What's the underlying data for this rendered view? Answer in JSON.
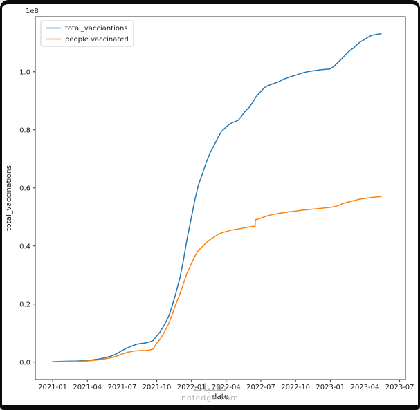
{
  "figure": {
    "background": "#ffffff",
    "frame_color": "#0b0b0b"
  },
  "watermark": {
    "line1": "تقنيات",
    "line2": "nofedge.com"
  },
  "chart_data": {
    "type": "line",
    "title": "",
    "xlabel": "date",
    "ylabel": "total_vaccinations",
    "y_offset_label": "1e8",
    "grid": false,
    "xlim": [
      -1.5,
      30.5
    ],
    "ylim": [
      -0.06,
      1.19
    ],
    "x_ticks": {
      "positions": [
        0,
        3,
        6,
        9,
        12,
        15,
        18,
        21,
        24,
        27,
        30
      ],
      "labels": [
        "2021-01",
        "2021-04",
        "2021-07",
        "2021-10",
        "2022-01",
        "2022-04",
        "2022-07",
        "2022-10",
        "2023-01",
        "2023-04",
        "2023-07"
      ]
    },
    "y_ticks": {
      "positions": [
        0.0,
        0.2,
        0.4,
        0.6,
        0.8,
        1.0
      ],
      "labels": [
        "0.0",
        "0.2",
        "0.4",
        "0.6",
        "0.8",
        "1.0"
      ]
    },
    "legend": {
      "position": "upper left",
      "edge_color": "#cccccc",
      "face_color": "#ffffff",
      "entries": [
        {
          "label": "total_vacciantions",
          "color": "#1f77b4"
        },
        {
          "label": "people vaccinated",
          "color": "#ff7f0e"
        }
      ]
    },
    "series": [
      {
        "name": "total_vacciantions",
        "color": "#1f77b4",
        "x_unit": "months since 2021-01",
        "y_unit": "1e8 doses",
        "x": [
          0,
          1,
          2,
          3,
          3.5,
          4,
          4.5,
          5,
          5.5,
          6,
          6.5,
          7,
          7.3,
          7.6,
          8,
          8.4,
          8.7,
          9,
          9.3,
          9.6,
          10,
          10.3,
          10.6,
          11,
          11.3,
          11.6,
          12,
          12.3,
          12.6,
          13,
          13.3,
          13.6,
          14,
          14.3,
          14.6,
          15,
          15.3,
          15.6,
          16,
          16.3,
          16.6,
          17,
          17.3,
          17.6,
          18,
          18.3,
          18.6,
          19,
          19.5,
          20,
          20.5,
          21,
          21.5,
          22,
          22.5,
          23,
          23.5,
          24,
          24.3,
          24.6,
          25,
          25.3,
          25.6,
          26,
          26.3,
          26.6,
          27,
          27.3,
          27.6,
          28,
          28.4
        ],
        "y": [
          0.002,
          0.003,
          0.004,
          0.006,
          0.008,
          0.011,
          0.015,
          0.02,
          0.028,
          0.04,
          0.05,
          0.058,
          0.062,
          0.064,
          0.066,
          0.07,
          0.075,
          0.09,
          0.105,
          0.125,
          0.155,
          0.19,
          0.23,
          0.29,
          0.35,
          0.42,
          0.5,
          0.56,
          0.61,
          0.655,
          0.69,
          0.72,
          0.75,
          0.775,
          0.795,
          0.81,
          0.82,
          0.826,
          0.832,
          0.845,
          0.862,
          0.878,
          0.895,
          0.915,
          0.932,
          0.945,
          0.952,
          0.958,
          0.965,
          0.975,
          0.982,
          0.988,
          0.995,
          1.0,
          1.003,
          1.006,
          1.008,
          1.01,
          1.018,
          1.03,
          1.045,
          1.058,
          1.07,
          1.082,
          1.093,
          1.103,
          1.112,
          1.12,
          1.126,
          1.129,
          1.131
        ]
      },
      {
        "name": "people vaccinated",
        "color": "#ff7f0e",
        "x_unit": "months since 2021-01",
        "y_unit": "1e8 people",
        "x": [
          0,
          1,
          2,
          3,
          3.5,
          4,
          4.5,
          5,
          5.5,
          6,
          6.5,
          7,
          7.3,
          7.6,
          8,
          8.4,
          8.7,
          9,
          9.3,
          9.6,
          10,
          10.3,
          10.6,
          11,
          11.3,
          11.6,
          12,
          12.3,
          12.6,
          13,
          13.3,
          13.6,
          14,
          14.3,
          14.6,
          15,
          15.5,
          16,
          16.5,
          17,
          17.4,
          17.5,
          17.52,
          18,
          18.5,
          19,
          19.5,
          20,
          20.5,
          21,
          21.5,
          22,
          22.5,
          23,
          23.5,
          24,
          24.3,
          24.6,
          25,
          25.5,
          26,
          26.5,
          27,
          27.5,
          28,
          28.4
        ],
        "y": [
          0.001,
          0.002,
          0.003,
          0.004,
          0.006,
          0.008,
          0.011,
          0.015,
          0.02,
          0.028,
          0.034,
          0.038,
          0.039,
          0.04,
          0.04,
          0.042,
          0.046,
          0.065,
          0.08,
          0.1,
          0.13,
          0.16,
          0.195,
          0.235,
          0.27,
          0.305,
          0.34,
          0.365,
          0.385,
          0.4,
          0.412,
          0.422,
          0.432,
          0.44,
          0.445,
          0.45,
          0.455,
          0.458,
          0.462,
          0.466,
          0.468,
          0.468,
          0.49,
          0.496,
          0.503,
          0.508,
          0.512,
          0.515,
          0.518,
          0.52,
          0.523,
          0.525,
          0.527,
          0.529,
          0.531,
          0.533,
          0.535,
          0.538,
          0.545,
          0.551,
          0.556,
          0.561,
          0.564,
          0.567,
          0.569,
          0.57
        ]
      }
    ]
  }
}
